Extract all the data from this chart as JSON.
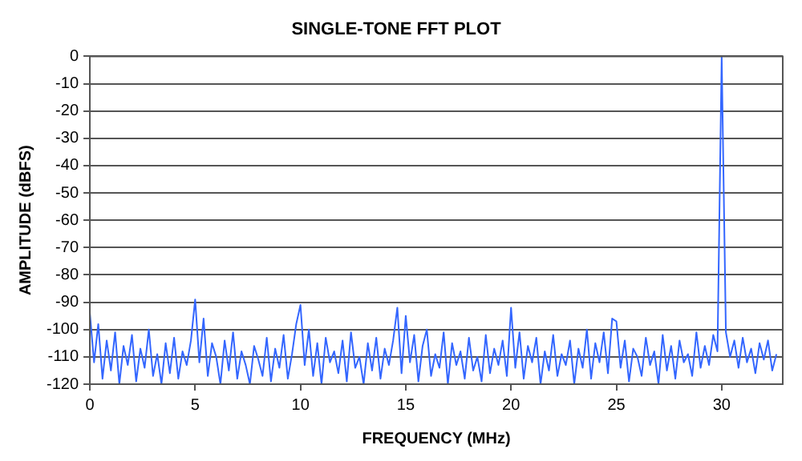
{
  "chart_data": {
    "type": "line",
    "title": "SINGLE-TONE FFT PLOT",
    "xlabel": "FREQUENCY (MHz)",
    "ylabel": "AMPLITUDE (dBFS)",
    "xlim": [
      0,
      32.9
    ],
    "xticks": [
      0,
      5,
      10,
      15,
      20,
      25,
      30
    ],
    "ylim": [
      -120,
      0
    ],
    "yticks": [
      -120,
      -110,
      -100,
      -90,
      -80,
      -70,
      -60,
      -50,
      -40,
      -30,
      -20,
      -10,
      0
    ],
    "grid": "y",
    "legend": false,
    "marker": "none",
    "line_style": "solid",
    "series": [
      {
        "color": "#3366ff",
        "x": [
          0,
          0.2,
          0.4,
          0.6,
          0.8,
          1,
          1.2,
          1.4,
          1.6,
          1.8,
          2,
          2.2,
          2.4,
          2.6,
          2.8,
          3,
          3.2,
          3.4,
          3.6,
          3.8,
          4,
          4.2,
          4.4,
          4.6,
          4.8,
          5,
          5.2,
          5.4,
          5.6,
          5.8,
          6,
          6.2,
          6.4,
          6.6,
          6.8,
          7,
          7.2,
          7.4,
          7.6,
          7.8,
          8,
          8.2,
          8.4,
          8.6,
          8.8,
          9,
          9.2,
          9.4,
          9.6,
          9.8,
          10,
          10.2,
          10.4,
          10.6,
          10.8,
          11,
          11.2,
          11.4,
          11.6,
          11.8,
          12,
          12.2,
          12.4,
          12.6,
          12.8,
          13,
          13.2,
          13.4,
          13.6,
          13.8,
          14,
          14.2,
          14.4,
          14.6,
          14.8,
          15,
          15.2,
          15.4,
          15.6,
          15.8,
          16,
          16.2,
          16.4,
          16.6,
          16.8,
          17,
          17.2,
          17.4,
          17.6,
          17.8,
          18,
          18.2,
          18.4,
          18.6,
          18.8,
          19,
          19.2,
          19.4,
          19.6,
          19.8,
          20,
          20.2,
          20.4,
          20.6,
          20.8,
          21,
          21.2,
          21.4,
          21.6,
          21.8,
          22,
          22.2,
          22.4,
          22.6,
          22.8,
          23,
          23.2,
          23.4,
          23.6,
          23.8,
          24,
          24.2,
          24.4,
          24.6,
          24.8,
          25,
          25.2,
          25.4,
          25.6,
          25.8,
          26,
          26.2,
          26.4,
          26.6,
          26.8,
          27,
          27.2,
          27.4,
          27.6,
          27.8,
          28,
          28.2,
          28.4,
          28.6,
          28.8,
          29,
          29.2,
          29.4,
          29.6,
          29.8,
          30,
          30.2,
          30.4,
          30.6,
          30.8,
          31,
          31.2,
          31.4,
          31.6,
          31.8,
          32,
          32.2,
          32.4,
          32.6
        ],
        "values": [
          -94,
          -112,
          -98,
          -118,
          -104,
          -115,
          -101,
          -120,
          -106,
          -113,
          -102,
          -119,
          -107,
          -114,
          -100,
          -117,
          -109,
          -120,
          -105,
          -116,
          -103,
          -118,
          -108,
          -113,
          -104,
          -89,
          -112,
          -96,
          -117,
          -105,
          -110,
          -120,
          -104,
          -115,
          -101,
          -118,
          -108,
          -113,
          -120,
          -106,
          -111,
          -117,
          -103,
          -119,
          -107,
          -114,
          -102,
          -118,
          -109,
          -98,
          -91,
          -113,
          -100,
          -117,
          -105,
          -120,
          -103,
          -112,
          -108,
          -116,
          -104,
          -119,
          -101,
          -114,
          -110,
          -120,
          -105,
          -115,
          -103,
          -118,
          -107,
          -113,
          -104,
          -92,
          -116,
          -95,
          -112,
          -102,
          -119,
          -106,
          -100,
          -117,
          -109,
          -114,
          -101,
          -120,
          -105,
          -113,
          -108,
          -118,
          -103,
          -115,
          -110,
          -119,
          -102,
          -116,
          -107,
          -113,
          -104,
          -117,
          -92,
          -114,
          -101,
          -118,
          -106,
          -112,
          -103,
          -120,
          -108,
          -115,
          -102,
          -117,
          -109,
          -113,
          -104,
          -120,
          -107,
          -114,
          -100,
          -118,
          -105,
          -112,
          -101,
          -116,
          -96,
          -97,
          -114,
          -104,
          -119,
          -107,
          -110,
          -117,
          -103,
          -113,
          -108,
          -120,
          -102,
          -115,
          -106,
          -118,
          -104,
          -112,
          -109,
          -117,
          -101,
          -114,
          -106,
          -113,
          -102,
          -108,
          0,
          -101,
          -110,
          -104,
          -114,
          -103,
          -112,
          -107,
          -116,
          -105,
          -111,
          -104,
          -115,
          -109
        ]
      }
    ]
  }
}
